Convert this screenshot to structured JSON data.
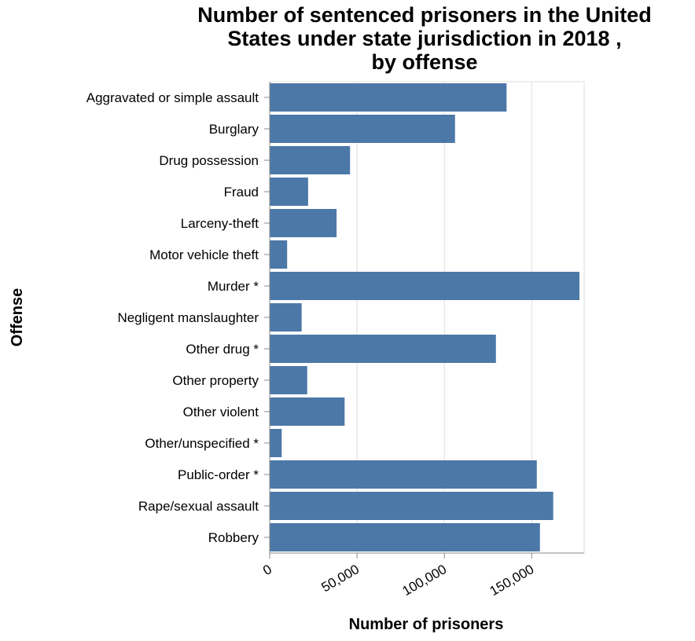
{
  "chart_data": {
    "type": "bar",
    "orientation": "horizontal",
    "title_lines": [
      "Number of sentenced prisoners in the United",
      "States under state jurisdiction in 2018 ,",
      "by offense"
    ],
    "xlabel": "Number of prisoners",
    "ylabel": "Offense",
    "xlim": [
      0,
      180000
    ],
    "x_ticks": [
      0,
      50000,
      100000,
      150000
    ],
    "x_tick_labels": [
      "0",
      "50,000",
      "100,000",
      "150,000"
    ],
    "grid": true,
    "bar_color": "#4c78a8",
    "categories": [
      "Aggravated or simple assault",
      "Burglary",
      "Drug possession",
      "Fraud",
      "Larceny-theft",
      "Motor vehicle theft",
      "Murder *",
      "Negligent manslaughter",
      "Other drug *",
      "Other property",
      "Other violent",
      "Other/unspecified *",
      "Public-order *",
      "Rape/sexual assault",
      "Robbery"
    ],
    "values": [
      135600,
      106100,
      46000,
      22000,
      38300,
      10000,
      177300,
      18300,
      129500,
      21500,
      42900,
      6900,
      152900,
      162300,
      154700
    ]
  }
}
